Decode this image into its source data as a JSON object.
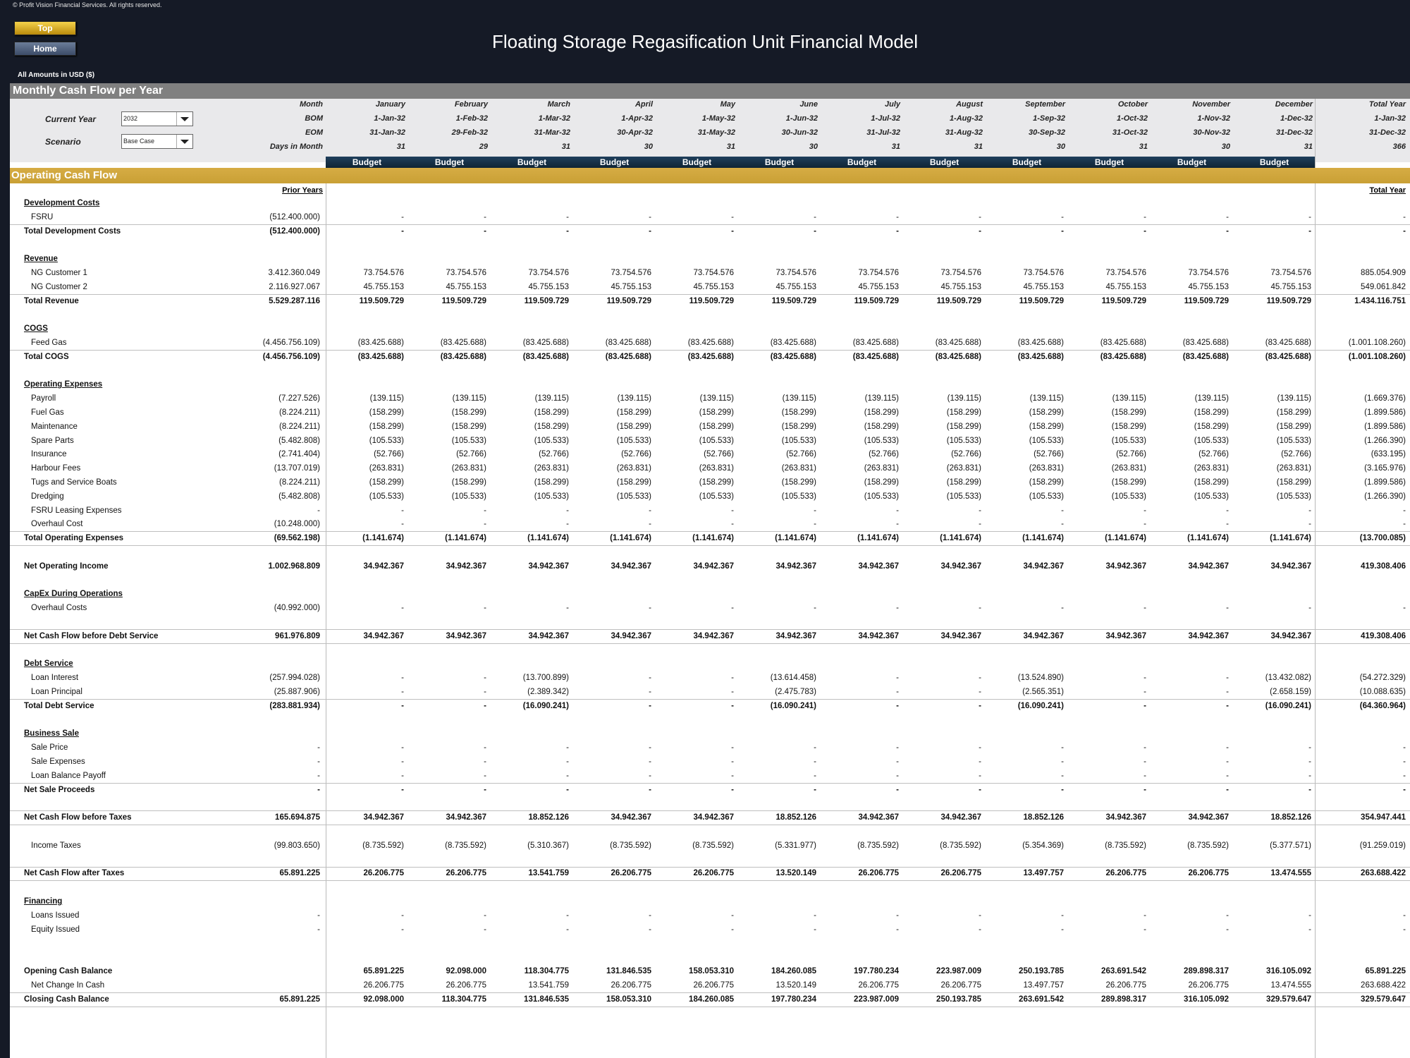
{
  "copyright": "© Profit Vision Financial Services. All rights reserved.",
  "buttons": {
    "top": "Top",
    "home": "Home"
  },
  "title": "Floating Storage Regasification Unit Financial Model",
  "amounts_label": "All Amounts in  USD ($)",
  "section_title": "Monthly Cash Flow per Year",
  "params": {
    "current_year_label": "Current Year",
    "current_year_value": "2032",
    "scenario_label": "Scenario",
    "scenario_value": "Base Case"
  },
  "header_labels": {
    "month": "Month",
    "bom": "BOM",
    "eom": "EOM",
    "days": "Days in Month"
  },
  "months": [
    {
      "name": "January",
      "bom": "1-Jan-32",
      "eom": "31-Jan-32",
      "days": "31",
      "tag": "Budget"
    },
    {
      "name": "February",
      "bom": "1-Feb-32",
      "eom": "29-Feb-32",
      "days": "29",
      "tag": "Budget"
    },
    {
      "name": "March",
      "bom": "1-Mar-32",
      "eom": "31-Mar-32",
      "days": "31",
      "tag": "Budget"
    },
    {
      "name": "April",
      "bom": "1-Apr-32",
      "eom": "30-Apr-32",
      "days": "30",
      "tag": "Budget"
    },
    {
      "name": "May",
      "bom": "1-May-32",
      "eom": "31-May-32",
      "days": "31",
      "tag": "Budget"
    },
    {
      "name": "June",
      "bom": "1-Jun-32",
      "eom": "30-Jun-32",
      "days": "30",
      "tag": "Budget"
    },
    {
      "name": "July",
      "bom": "1-Jul-32",
      "eom": "31-Jul-32",
      "days": "31",
      "tag": "Budget"
    },
    {
      "name": "August",
      "bom": "1-Aug-32",
      "eom": "31-Aug-32",
      "days": "31",
      "tag": "Budget"
    },
    {
      "name": "September",
      "bom": "1-Sep-32",
      "eom": "30-Sep-32",
      "days": "30",
      "tag": "Budget"
    },
    {
      "name": "October",
      "bom": "1-Oct-32",
      "eom": "31-Oct-32",
      "days": "31",
      "tag": "Budget"
    },
    {
      "name": "November",
      "bom": "1-Nov-32",
      "eom": "30-Nov-32",
      "days": "30",
      "tag": "Budget"
    },
    {
      "name": "December",
      "bom": "1-Dec-32",
      "eom": "31-Dec-32",
      "days": "31",
      "tag": "Budget"
    }
  ],
  "total_year": {
    "name": "Total Year",
    "bom": "1-Jan-32",
    "eom": "31-Dec-32",
    "days": "366"
  },
  "ocf_title": "Operating Cash Flow",
  "col_prior": "Prior Years",
  "col_total": "Total Year",
  "rows": [
    {
      "t": "header",
      "label": "Development Costs"
    },
    {
      "t": "item",
      "label": "FSRU",
      "prior": "(512.400.000)",
      "v": [
        "-",
        "-",
        "-",
        "-",
        "-",
        "-",
        "-",
        "-",
        "-",
        "-",
        "-",
        "-"
      ],
      "total": "-",
      "line": true
    },
    {
      "t": "total",
      "label": "Total Development Costs",
      "prior": "(512.400.000)",
      "v": [
        "-",
        "-",
        "-",
        "-",
        "-",
        "-",
        "-",
        "-",
        "-",
        "-",
        "-",
        "-"
      ],
      "total": "-"
    },
    {
      "t": "blank"
    },
    {
      "t": "header",
      "label": "Revenue"
    },
    {
      "t": "item",
      "label": "NG Customer 1",
      "prior": "3.412.360.049",
      "v": [
        "73.754.576",
        "73.754.576",
        "73.754.576",
        "73.754.576",
        "73.754.576",
        "73.754.576",
        "73.754.576",
        "73.754.576",
        "73.754.576",
        "73.754.576",
        "73.754.576",
        "73.754.576"
      ],
      "total": "885.054.909"
    },
    {
      "t": "item",
      "label": "NG Customer 2",
      "prior": "2.116.927.067",
      "v": [
        "45.755.153",
        "45.755.153",
        "45.755.153",
        "45.755.153",
        "45.755.153",
        "45.755.153",
        "45.755.153",
        "45.755.153",
        "45.755.153",
        "45.755.153",
        "45.755.153",
        "45.755.153"
      ],
      "total": "549.061.842",
      "line": true
    },
    {
      "t": "total",
      "label": "Total Revenue",
      "prior": "5.529.287.116",
      "v": [
        "119.509.729",
        "119.509.729",
        "119.509.729",
        "119.509.729",
        "119.509.729",
        "119.509.729",
        "119.509.729",
        "119.509.729",
        "119.509.729",
        "119.509.729",
        "119.509.729",
        "119.509.729"
      ],
      "total": "1.434.116.751"
    },
    {
      "t": "blank"
    },
    {
      "t": "header",
      "label": "COGS"
    },
    {
      "t": "item",
      "label": "Feed Gas",
      "prior": "(4.456.756.109)",
      "v": [
        "(83.425.688)",
        "(83.425.688)",
        "(83.425.688)",
        "(83.425.688)",
        "(83.425.688)",
        "(83.425.688)",
        "(83.425.688)",
        "(83.425.688)",
        "(83.425.688)",
        "(83.425.688)",
        "(83.425.688)",
        "(83.425.688)"
      ],
      "total": "(1.001.108.260)",
      "line": true
    },
    {
      "t": "total",
      "label": "Total COGS",
      "prior": "(4.456.756.109)",
      "v": [
        "(83.425.688)",
        "(83.425.688)",
        "(83.425.688)",
        "(83.425.688)",
        "(83.425.688)",
        "(83.425.688)",
        "(83.425.688)",
        "(83.425.688)",
        "(83.425.688)",
        "(83.425.688)",
        "(83.425.688)",
        "(83.425.688)"
      ],
      "total": "(1.001.108.260)"
    },
    {
      "t": "blank"
    },
    {
      "t": "header",
      "label": "Operating Expenses"
    },
    {
      "t": "item",
      "label": "Payroll",
      "prior": "(7.227.526)",
      "v": [
        "(139.115)",
        "(139.115)",
        "(139.115)",
        "(139.115)",
        "(139.115)",
        "(139.115)",
        "(139.115)",
        "(139.115)",
        "(139.115)",
        "(139.115)",
        "(139.115)",
        "(139.115)"
      ],
      "total": "(1.669.376)"
    },
    {
      "t": "item",
      "label": "Fuel Gas",
      "prior": "(8.224.211)",
      "v": [
        "(158.299)",
        "(158.299)",
        "(158.299)",
        "(158.299)",
        "(158.299)",
        "(158.299)",
        "(158.299)",
        "(158.299)",
        "(158.299)",
        "(158.299)",
        "(158.299)",
        "(158.299)"
      ],
      "total": "(1.899.586)"
    },
    {
      "t": "item",
      "label": "Maintenance",
      "prior": "(8.224.211)",
      "v": [
        "(158.299)",
        "(158.299)",
        "(158.299)",
        "(158.299)",
        "(158.299)",
        "(158.299)",
        "(158.299)",
        "(158.299)",
        "(158.299)",
        "(158.299)",
        "(158.299)",
        "(158.299)"
      ],
      "total": "(1.899.586)"
    },
    {
      "t": "item",
      "label": "Spare Parts",
      "prior": "(5.482.808)",
      "v": [
        "(105.533)",
        "(105.533)",
        "(105.533)",
        "(105.533)",
        "(105.533)",
        "(105.533)",
        "(105.533)",
        "(105.533)",
        "(105.533)",
        "(105.533)",
        "(105.533)",
        "(105.533)"
      ],
      "total": "(1.266.390)"
    },
    {
      "t": "item",
      "label": "Insurance",
      "prior": "(2.741.404)",
      "v": [
        "(52.766)",
        "(52.766)",
        "(52.766)",
        "(52.766)",
        "(52.766)",
        "(52.766)",
        "(52.766)",
        "(52.766)",
        "(52.766)",
        "(52.766)",
        "(52.766)",
        "(52.766)"
      ],
      "total": "(633.195)"
    },
    {
      "t": "item",
      "label": "Harbour Fees",
      "prior": "(13.707.019)",
      "v": [
        "(263.831)",
        "(263.831)",
        "(263.831)",
        "(263.831)",
        "(263.831)",
        "(263.831)",
        "(263.831)",
        "(263.831)",
        "(263.831)",
        "(263.831)",
        "(263.831)",
        "(263.831)"
      ],
      "total": "(3.165.976)"
    },
    {
      "t": "item",
      "label": "Tugs and Service Boats",
      "prior": "(8.224.211)",
      "v": [
        "(158.299)",
        "(158.299)",
        "(158.299)",
        "(158.299)",
        "(158.299)",
        "(158.299)",
        "(158.299)",
        "(158.299)",
        "(158.299)",
        "(158.299)",
        "(158.299)",
        "(158.299)"
      ],
      "total": "(1.899.586)"
    },
    {
      "t": "item",
      "label": "Dredging",
      "prior": "(5.482.808)",
      "v": [
        "(105.533)",
        "(105.533)",
        "(105.533)",
        "(105.533)",
        "(105.533)",
        "(105.533)",
        "(105.533)",
        "(105.533)",
        "(105.533)",
        "(105.533)",
        "(105.533)",
        "(105.533)"
      ],
      "total": "(1.266.390)"
    },
    {
      "t": "item",
      "label": "FSRU Leasing Expenses",
      "prior": "-",
      "v": [
        "-",
        "-",
        "-",
        "-",
        "-",
        "-",
        "-",
        "-",
        "-",
        "-",
        "-",
        "-"
      ],
      "total": "-"
    },
    {
      "t": "item",
      "label": "Overhaul Cost",
      "prior": "(10.248.000)",
      "v": [
        "-",
        "-",
        "-",
        "-",
        "-",
        "-",
        "-",
        "-",
        "-",
        "-",
        "-",
        "-"
      ],
      "total": "-",
      "line": true
    },
    {
      "t": "total",
      "label": "Total Operating Expenses",
      "prior": "(69.562.198)",
      "v": [
        "(1.141.674)",
        "(1.141.674)",
        "(1.141.674)",
        "(1.141.674)",
        "(1.141.674)",
        "(1.141.674)",
        "(1.141.674)",
        "(1.141.674)",
        "(1.141.674)",
        "(1.141.674)",
        "(1.141.674)",
        "(1.141.674)"
      ],
      "total": "(13.700.085)",
      "line": true
    },
    {
      "t": "blank"
    },
    {
      "t": "total",
      "label": "Net Operating Income",
      "prior": "1.002.968.809",
      "v": [
        "34.942.367",
        "34.942.367",
        "34.942.367",
        "34.942.367",
        "34.942.367",
        "34.942.367",
        "34.942.367",
        "34.942.367",
        "34.942.367",
        "34.942.367",
        "34.942.367",
        "34.942.367"
      ],
      "total": "419.308.406"
    },
    {
      "t": "blank"
    },
    {
      "t": "header",
      "label": "CapEx During Operations"
    },
    {
      "t": "item",
      "label": "Overhaul Costs",
      "prior": "(40.992.000)",
      "v": [
        "-",
        "-",
        "-",
        "-",
        "-",
        "-",
        "-",
        "-",
        "-",
        "-",
        "-",
        "-"
      ],
      "total": "-"
    },
    {
      "t": "blank",
      "line": true
    },
    {
      "t": "total",
      "label": "Net Cash Flow before Debt Service",
      "prior": "961.976.809",
      "v": [
        "34.942.367",
        "34.942.367",
        "34.942.367",
        "34.942.367",
        "34.942.367",
        "34.942.367",
        "34.942.367",
        "34.942.367",
        "34.942.367",
        "34.942.367",
        "34.942.367",
        "34.942.367"
      ],
      "total": "419.308.406",
      "line": true
    },
    {
      "t": "blank"
    },
    {
      "t": "header",
      "label": "Debt Service"
    },
    {
      "t": "item",
      "label": "Loan Interest",
      "prior": "(257.994.028)",
      "v": [
        "-",
        "-",
        "(13.700.899)",
        "-",
        "-",
        "(13.614.458)",
        "-",
        "-",
        "(13.524.890)",
        "-",
        "-",
        "(13.432.082)"
      ],
      "total": "(54.272.329)"
    },
    {
      "t": "item",
      "label": "Loan Principal",
      "prior": "(25.887.906)",
      "v": [
        "-",
        "-",
        "(2.389.342)",
        "-",
        "-",
        "(2.475.783)",
        "-",
        "-",
        "(2.565.351)",
        "-",
        "-",
        "(2.658.159)"
      ],
      "total": "(10.088.635)",
      "line": true
    },
    {
      "t": "total",
      "label": "Total Debt Service",
      "prior": "(283.881.934)",
      "v": [
        "-",
        "-",
        "(16.090.241)",
        "-",
        "-",
        "(16.090.241)",
        "-",
        "-",
        "(16.090.241)",
        "-",
        "-",
        "(16.090.241)"
      ],
      "total": "(64.360.964)"
    },
    {
      "t": "blank"
    },
    {
      "t": "header",
      "label": "Business Sale"
    },
    {
      "t": "item",
      "label": "Sale Price",
      "prior": "-",
      "v": [
        "-",
        "-",
        "-",
        "-",
        "-",
        "-",
        "-",
        "-",
        "-",
        "-",
        "-",
        "-"
      ],
      "total": "-"
    },
    {
      "t": "item",
      "label": "Sale Expenses",
      "prior": "-",
      "v": [
        "-",
        "-",
        "-",
        "-",
        "-",
        "-",
        "-",
        "-",
        "-",
        "-",
        "-",
        "-"
      ],
      "total": "-"
    },
    {
      "t": "item",
      "label": "Loan Balance Payoff",
      "prior": "-",
      "v": [
        "-",
        "-",
        "-",
        "-",
        "-",
        "-",
        "-",
        "-",
        "-",
        "-",
        "-",
        "-"
      ],
      "total": "-",
      "line": true
    },
    {
      "t": "total",
      "label": "Net Sale Proceeds",
      "prior": "-",
      "v": [
        "-",
        "-",
        "-",
        "-",
        "-",
        "-",
        "-",
        "-",
        "-",
        "-",
        "-",
        "-"
      ],
      "total": "-"
    },
    {
      "t": "blank",
      "line": true
    },
    {
      "t": "total",
      "label": "Net Cash Flow before Taxes",
      "prior": "165.694.875",
      "v": [
        "34.942.367",
        "34.942.367",
        "18.852.126",
        "34.942.367",
        "34.942.367",
        "18.852.126",
        "34.942.367",
        "34.942.367",
        "18.852.126",
        "34.942.367",
        "34.942.367",
        "18.852.126"
      ],
      "total": "354.947.441",
      "line": true
    },
    {
      "t": "blank"
    },
    {
      "t": "item",
      "label": "Income Taxes",
      "prior": "(99.803.650)",
      "v": [
        "(8.735.592)",
        "(8.735.592)",
        "(5.310.367)",
        "(8.735.592)",
        "(8.735.592)",
        "(5.331.977)",
        "(8.735.592)",
        "(8.735.592)",
        "(5.354.369)",
        "(8.735.592)",
        "(8.735.592)",
        "(5.377.571)"
      ],
      "total": "(91.259.019)"
    },
    {
      "t": "blank",
      "line": true
    },
    {
      "t": "total",
      "label": "Net Cash Flow after Taxes",
      "prior": "65.891.225",
      "v": [
        "26.206.775",
        "26.206.775",
        "13.541.759",
        "26.206.775",
        "26.206.775",
        "13.520.149",
        "26.206.775",
        "26.206.775",
        "13.497.757",
        "26.206.775",
        "26.206.775",
        "13.474.555"
      ],
      "total": "263.688.422",
      "line": true
    },
    {
      "t": "blank"
    },
    {
      "t": "header",
      "label": "Financing"
    },
    {
      "t": "item",
      "label": "Loans Issued",
      "prior": "-",
      "v": [
        "-",
        "-",
        "-",
        "-",
        "-",
        "-",
        "-",
        "-",
        "-",
        "-",
        "-",
        "-"
      ],
      "total": "-"
    },
    {
      "t": "item",
      "label": "Equity Issued",
      "prior": "-",
      "v": [
        "-",
        "-",
        "-",
        "-",
        "-",
        "-",
        "-",
        "-",
        "-",
        "-",
        "-",
        "-"
      ],
      "total": "-"
    },
    {
      "t": "blank"
    },
    {
      "t": "blank"
    },
    {
      "t": "total",
      "label": "Opening Cash Balance",
      "prior": "",
      "v": [
        "65.891.225",
        "92.098.000",
        "118.304.775",
        "131.846.535",
        "158.053.310",
        "184.260.085",
        "197.780.234",
        "223.987.009",
        "250.193.785",
        "263.691.542",
        "289.898.317",
        "316.105.092"
      ],
      "total": "65.891.225",
      "plain": true
    },
    {
      "t": "item",
      "label": "Net Change In Cash",
      "prior": "",
      "v": [
        "26.206.775",
        "26.206.775",
        "13.541.759",
        "26.206.775",
        "26.206.775",
        "13.520.149",
        "26.206.775",
        "26.206.775",
        "13.497.757",
        "26.206.775",
        "26.206.775",
        "13.474.555"
      ],
      "total": "263.688.422",
      "line": true
    },
    {
      "t": "total",
      "label": "Closing Cash Balance",
      "prior": "65.891.225",
      "v": [
        "92.098.000",
        "118.304.775",
        "131.846.535",
        "158.053.310",
        "184.260.085",
        "197.780.234",
        "223.987.009",
        "250.193.785",
        "263.691.542",
        "289.898.317",
        "316.105.092",
        "329.579.647"
      ],
      "total": "329.579.647",
      "line": true
    }
  ]
}
